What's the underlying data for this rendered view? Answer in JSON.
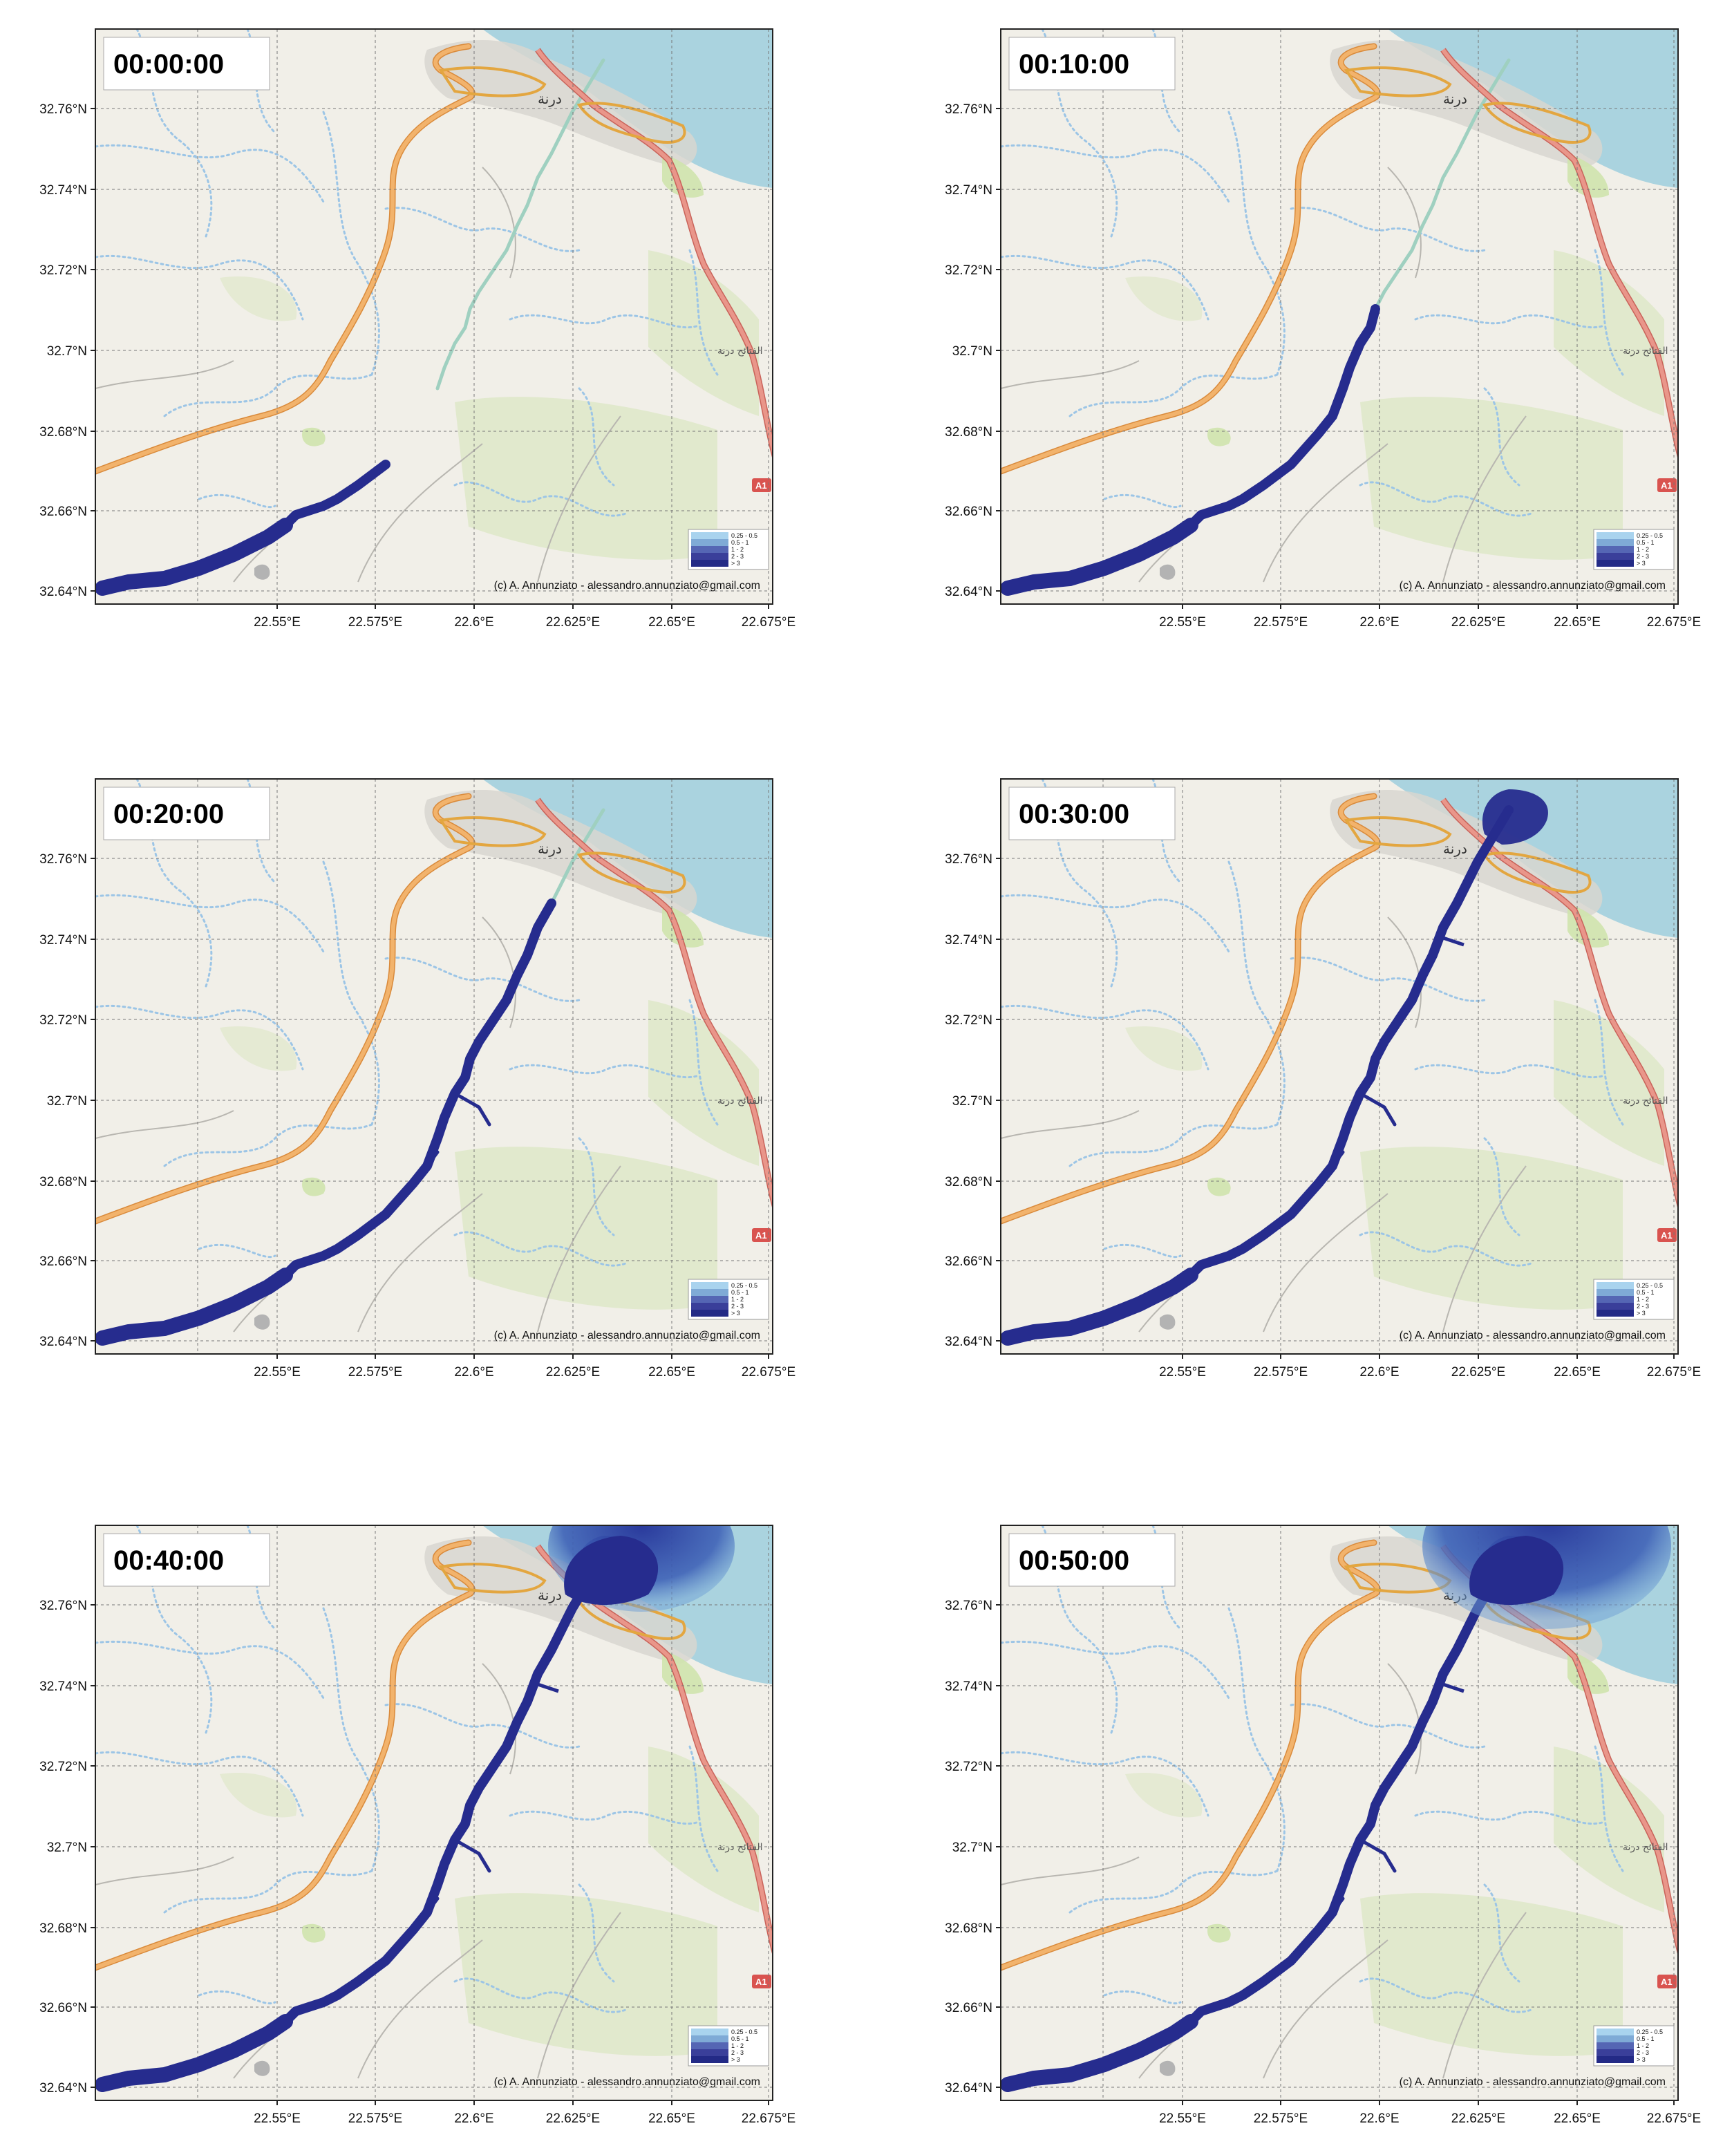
{
  "figure": {
    "panels": [
      {
        "time": "00:00:00",
        "stage": 0
      },
      {
        "time": "00:10:00",
        "stage": 1
      },
      {
        "time": "00:20:00",
        "stage": 2
      },
      {
        "time": "00:30:00",
        "stage": 3
      },
      {
        "time": "00:40:00",
        "stage": 4
      },
      {
        "time": "00:50:00",
        "stage": 5
      }
    ],
    "lat_labels": [
      "32.76°N",
      "32.74°N",
      "32.72°N",
      "32.7°N",
      "32.68°N",
      "32.66°N",
      "32.64°N"
    ],
    "lon_labels": [
      "22.55°E",
      "22.575°E",
      "22.6°E",
      "22.625°E",
      "22.65°E",
      "22.675°E"
    ],
    "legend": [
      "0.25 - 0.5",
      "0.5 - 1",
      "1 - 2",
      "2 - 3",
      "> 3"
    ],
    "legend_colors": [
      "#a9d3ee",
      "#7faad6",
      "#5566b4",
      "#3a3f9a",
      "#232a86"
    ],
    "credit": "(c) A. Annunziato - alessandro.annunziato@gmail.com",
    "city_label": "درنة",
    "suburb_label": "الفتائح درنة",
    "road_shield": "A1",
    "colors": {
      "land": "#f1efe8",
      "sea": "#aad3df",
      "flood": "#262c8e",
      "primary_road": "#e9968a",
      "secondary_road": "#f2b36c",
      "wadi": "#9cc5e6",
      "park": "#cfe3ad",
      "urban": "#d8d6d0",
      "grid": "#777777"
    }
  }
}
